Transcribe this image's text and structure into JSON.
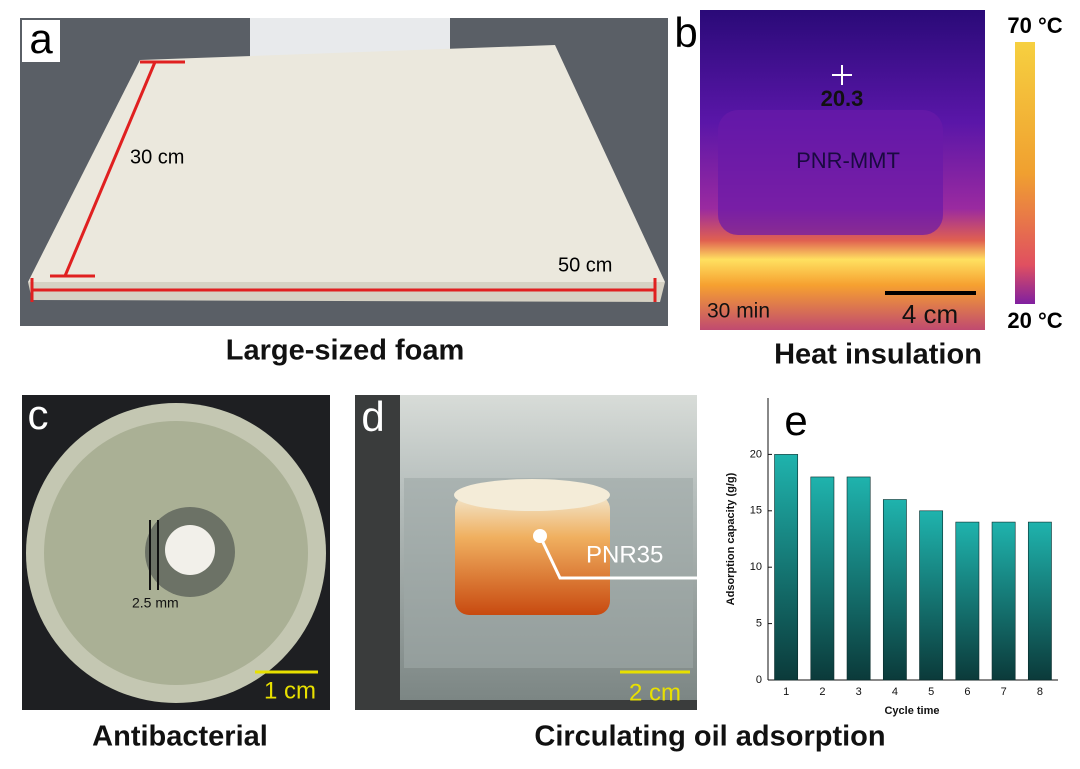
{
  "panels": {
    "a": {
      "label": "a",
      "height": "30 cm",
      "width": "50 cm",
      "caption": "Large-sized foam"
    },
    "b": {
      "label": "b",
      "temperature": "20.3",
      "sample": "PNR-MMT",
      "time": "30 min",
      "scale_bar": "4 cm",
      "colorbar_max": "70 °C",
      "colorbar_min": "20 °C",
      "caption": "Heat insulation"
    },
    "c": {
      "label": "c",
      "zone": "2.5 mm",
      "scale_bar": "1 cm",
      "caption": "Antibacterial"
    },
    "d": {
      "label": "d",
      "sample": "PNR35",
      "scale_bar": "2 cm",
      "caption": "Circulating oil adsorption"
    },
    "e": {
      "label": "e"
    }
  },
  "chart_data": {
    "type": "bar",
    "x_label": "Cycle time",
    "y_label": "Adsorption capacity (g/g)",
    "categories": [
      "1",
      "2",
      "3",
      "4",
      "5",
      "6",
      "7",
      "8"
    ],
    "values": [
      20,
      18,
      18,
      16,
      15,
      14,
      14,
      14
    ],
    "color": "#1fb3ad",
    "ylim": [
      0,
      25
    ],
    "yticks": [
      0,
      5,
      10,
      15,
      20
    ]
  }
}
